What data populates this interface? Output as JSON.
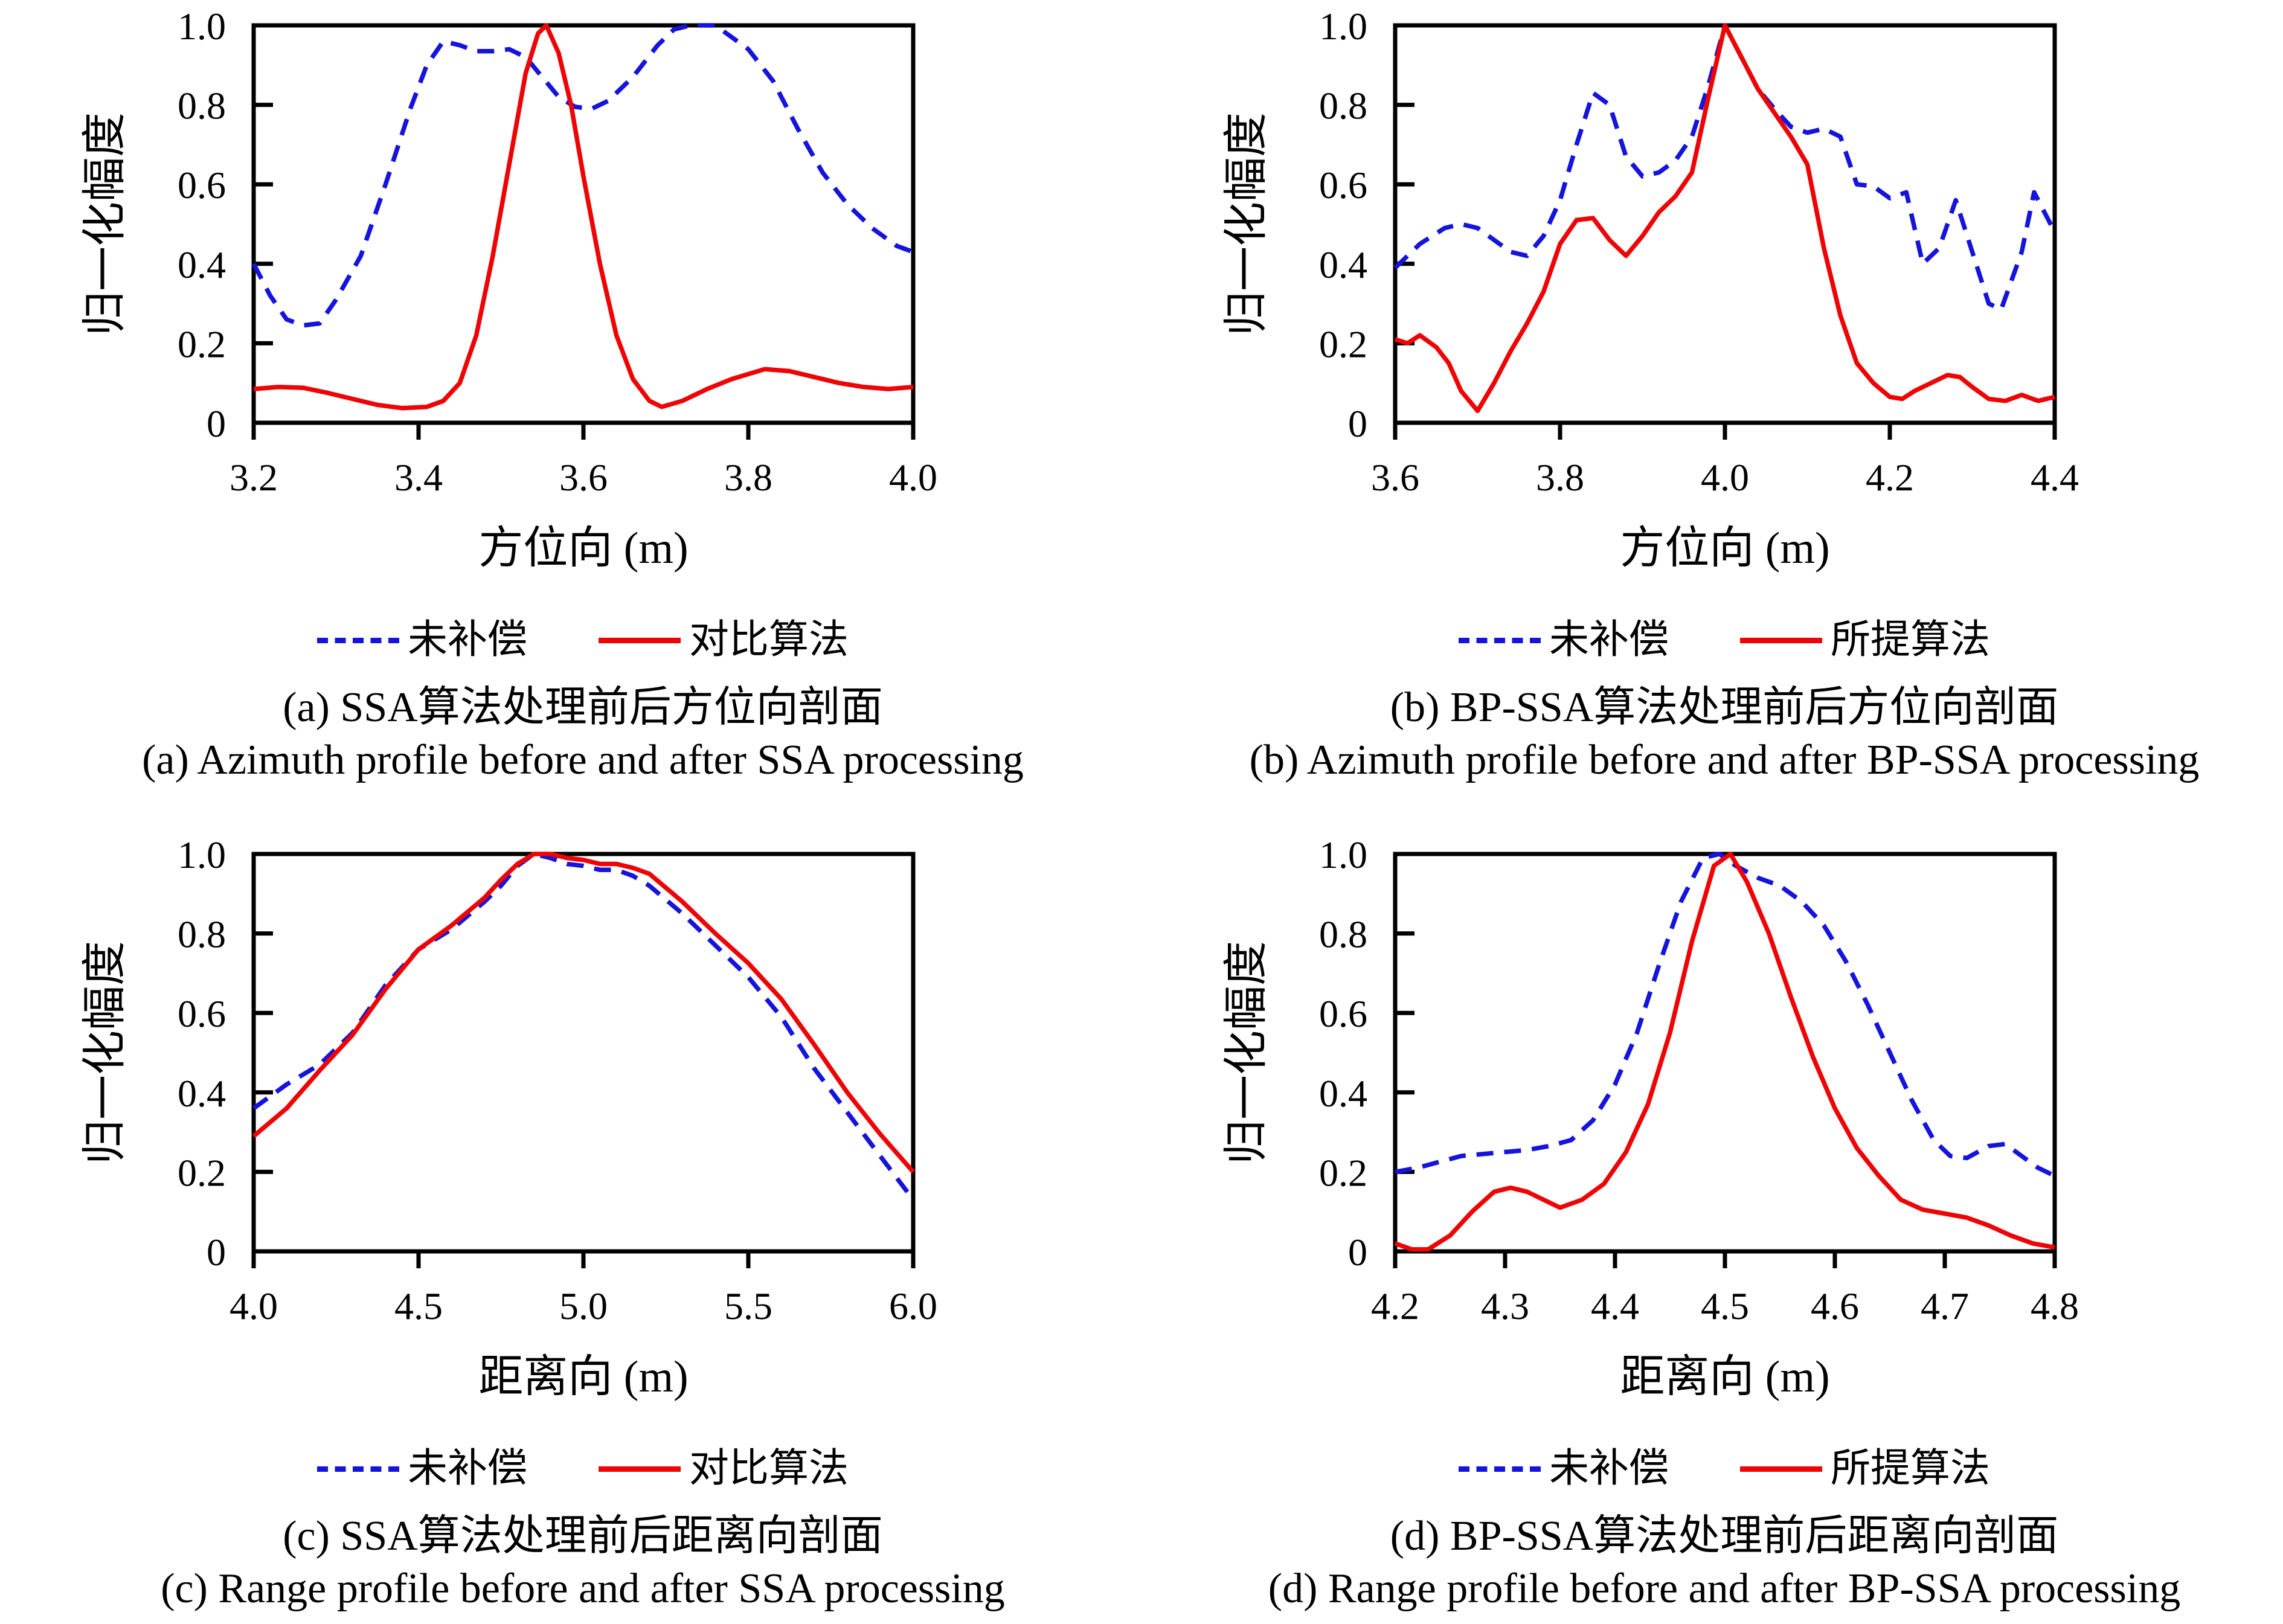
{
  "figure": {
    "background": "#ffffff",
    "colors": {
      "axis": "#000000",
      "uncompensated": "#1414dc",
      "processed": "#ee0404"
    }
  },
  "chart_data": [
    {
      "id": "a",
      "type": "line",
      "caption_zh": "(a) SSA算法处理前后方位向剖面",
      "caption_en": "(a) Azimuth profile before and after SSA processing",
      "xlabel": "方位向 (m)",
      "ylabel": "归一化幅度",
      "xlim": [
        3.2,
        4.0
      ],
      "ylim": [
        0,
        1
      ],
      "grid": false,
      "legend_position": "below",
      "x_ticks": [
        {
          "label": "3.2",
          "value": 3.2
        },
        {
          "label": "3.4",
          "value": 3.4
        },
        {
          "label": "3.6",
          "value": 3.6
        },
        {
          "label": "3.8",
          "value": 3.8
        },
        {
          "label": "4.0",
          "value": 4.0
        }
      ],
      "y_ticks": [
        {
          "label": "0",
          "value": 0
        },
        {
          "label": "0.2",
          "value": 0.2
        },
        {
          "label": "0.4",
          "value": 0.4
        },
        {
          "label": "0.6",
          "value": 0.6
        },
        {
          "label": "0.8",
          "value": 0.8
        },
        {
          "label": "1.0",
          "value": 1.0
        }
      ],
      "legend": [
        {
          "label": "未补偿",
          "style": "dashed",
          "color_key": "uncompensated"
        },
        {
          "label": "对比算法",
          "style": "solid",
          "color_key": "processed"
        }
      ],
      "series": [
        {
          "name": "未补偿",
          "style": "dashed",
          "color_key": "uncompensated",
          "x": [
            3.2,
            3.22,
            3.24,
            3.26,
            3.28,
            3.3,
            3.33,
            3.36,
            3.39,
            3.41,
            3.43,
            3.45,
            3.47,
            3.49,
            3.51,
            3.53,
            3.55,
            3.57,
            3.59,
            3.61,
            3.63,
            3.66,
            3.69,
            3.71,
            3.73,
            3.76,
            3.78,
            3.8,
            3.83,
            3.86,
            3.89,
            3.92,
            3.95,
            3.98,
            4.0
          ],
          "y": [
            0.4,
            0.32,
            0.26,
            0.245,
            0.25,
            0.31,
            0.42,
            0.6,
            0.79,
            0.9,
            0.96,
            0.95,
            0.935,
            0.935,
            0.94,
            0.92,
            0.87,
            0.82,
            0.795,
            0.79,
            0.81,
            0.87,
            0.95,
            0.99,
            1.0,
            1.0,
            0.97,
            0.94,
            0.86,
            0.74,
            0.63,
            0.55,
            0.49,
            0.445,
            0.43
          ]
        },
        {
          "name": "对比算法",
          "style": "solid",
          "color_key": "processed",
          "x": [
            3.2,
            3.23,
            3.26,
            3.29,
            3.32,
            3.35,
            3.38,
            3.41,
            3.43,
            3.45,
            3.47,
            3.49,
            3.51,
            3.53,
            3.545,
            3.555,
            3.57,
            3.585,
            3.6,
            3.62,
            3.64,
            3.66,
            3.68,
            3.695,
            3.72,
            3.75,
            3.78,
            3.82,
            3.85,
            3.88,
            3.91,
            3.94,
            3.97,
            4.0
          ],
          "y": [
            0.085,
            0.09,
            0.088,
            0.075,
            0.06,
            0.045,
            0.037,
            0.04,
            0.055,
            0.1,
            0.22,
            0.42,
            0.65,
            0.88,
            0.98,
            1.0,
            0.93,
            0.8,
            0.62,
            0.4,
            0.22,
            0.11,
            0.055,
            0.04,
            0.055,
            0.085,
            0.11,
            0.135,
            0.13,
            0.115,
            0.1,
            0.09,
            0.085,
            0.09
          ]
        }
      ]
    },
    {
      "id": "b",
      "type": "line",
      "caption_zh": "(b) BP-SSA算法处理前后方位向剖面",
      "caption_en": "(b) Azimuth profile before and after BP-SSA processing",
      "xlabel": "方位向 (m)",
      "ylabel": "归一化幅度",
      "xlim": [
        3.6,
        4.4
      ],
      "ylim": [
        0,
        1
      ],
      "grid": false,
      "legend_position": "below",
      "x_ticks": [
        {
          "label": "3.6",
          "value": 3.6
        },
        {
          "label": "3.8",
          "value": 3.8
        },
        {
          "label": "4.0",
          "value": 4.0
        },
        {
          "label": "4.2",
          "value": 4.2
        },
        {
          "label": "4.4",
          "value": 4.4
        }
      ],
      "y_ticks": [
        {
          "label": "0",
          "value": 0
        },
        {
          "label": "0.2",
          "value": 0.2
        },
        {
          "label": "0.4",
          "value": 0.4
        },
        {
          "label": "0.6",
          "value": 0.6
        },
        {
          "label": "0.8",
          "value": 0.8
        },
        {
          "label": "1.0",
          "value": 1.0
        }
      ],
      "legend": [
        {
          "label": "未补偿",
          "style": "dashed",
          "color_key": "uncompensated"
        },
        {
          "label": "所提算法",
          "style": "solid",
          "color_key": "processed"
        }
      ],
      "series": [
        {
          "name": "未补偿",
          "style": "dashed",
          "color_key": "uncompensated",
          "x": [
            3.6,
            3.63,
            3.66,
            3.68,
            3.7,
            3.72,
            3.74,
            3.76,
            3.78,
            3.8,
            3.82,
            3.84,
            3.86,
            3.88,
            3.9,
            3.92,
            3.94,
            3.96,
            3.98,
            4.0,
            4.02,
            4.04,
            4.06,
            4.08,
            4.1,
            4.12,
            4.14,
            4.16,
            4.18,
            4.2,
            4.22,
            4.24,
            4.26,
            4.28,
            4.3,
            4.32,
            4.335,
            4.36,
            4.375,
            4.39,
            4.4
          ],
          "y": [
            0.39,
            0.45,
            0.49,
            0.5,
            0.49,
            0.46,
            0.43,
            0.42,
            0.47,
            0.56,
            0.7,
            0.83,
            0.8,
            0.67,
            0.62,
            0.63,
            0.66,
            0.72,
            0.85,
            1.0,
            0.92,
            0.84,
            0.79,
            0.745,
            0.73,
            0.74,
            0.72,
            0.6,
            0.595,
            0.565,
            0.58,
            0.4,
            0.44,
            0.56,
            0.43,
            0.3,
            0.285,
            0.43,
            0.58,
            0.52,
            0.48
          ]
        },
        {
          "name": "所提算法",
          "style": "solid",
          "color_key": "processed",
          "x": [
            3.6,
            3.615,
            3.63,
            3.65,
            3.665,
            3.68,
            3.7,
            3.72,
            3.74,
            3.76,
            3.78,
            3.8,
            3.82,
            3.84,
            3.86,
            3.88,
            3.9,
            3.92,
            3.94,
            3.96,
            3.98,
            4.0,
            4.02,
            4.04,
            4.06,
            4.08,
            4.1,
            4.12,
            4.14,
            4.16,
            4.18,
            4.2,
            4.215,
            4.23,
            4.25,
            4.27,
            4.285,
            4.3,
            4.32,
            4.34,
            4.36,
            4.38,
            4.4
          ],
          "y": [
            0.21,
            0.2,
            0.22,
            0.19,
            0.15,
            0.08,
            0.03,
            0.1,
            0.18,
            0.25,
            0.33,
            0.45,
            0.51,
            0.515,
            0.46,
            0.42,
            0.47,
            0.53,
            0.57,
            0.63,
            0.82,
            1.0,
            0.92,
            0.84,
            0.78,
            0.72,
            0.65,
            0.44,
            0.27,
            0.15,
            0.1,
            0.065,
            0.06,
            0.08,
            0.1,
            0.12,
            0.115,
            0.09,
            0.06,
            0.055,
            0.07,
            0.055,
            0.065
          ]
        }
      ]
    },
    {
      "id": "c",
      "type": "line",
      "caption_zh": "(c) SSA算法处理前后距离向剖面",
      "caption_en": "(c) Range profile before and after SSA processing",
      "xlabel": "距离向 (m)",
      "ylabel": "归一化幅度",
      "xlim": [
        4.0,
        6.0
      ],
      "ylim": [
        0,
        1
      ],
      "grid": false,
      "legend_position": "below",
      "x_ticks": [
        {
          "label": "4.0",
          "value": 4.0
        },
        {
          "label": "4.5",
          "value": 4.5
        },
        {
          "label": "5.0",
          "value": 5.0
        },
        {
          "label": "5.5",
          "value": 5.5
        },
        {
          "label": "6.0",
          "value": 6.0
        }
      ],
      "y_ticks": [
        {
          "label": "0",
          "value": 0
        },
        {
          "label": "0.2",
          "value": 0.2
        },
        {
          "label": "0.4",
          "value": 0.4
        },
        {
          "label": "0.6",
          "value": 0.6
        },
        {
          "label": "0.8",
          "value": 0.8
        },
        {
          "label": "1.0",
          "value": 1.0
        }
      ],
      "legend": [
        {
          "label": "未补偿",
          "style": "dashed",
          "color_key": "uncompensated"
        },
        {
          "label": "对比算法",
          "style": "solid",
          "color_key": "processed"
        }
      ],
      "series": [
        {
          "name": "未补偿",
          "style": "dashed",
          "color_key": "uncompensated",
          "x": [
            4.0,
            4.1,
            4.2,
            4.3,
            4.4,
            4.5,
            4.6,
            4.7,
            4.75,
            4.8,
            4.85,
            4.9,
            4.95,
            5.0,
            5.05,
            5.1,
            5.15,
            5.2,
            5.3,
            5.4,
            5.5,
            5.6,
            5.7,
            5.8,
            5.9,
            6.0
          ],
          "y": [
            0.36,
            0.42,
            0.47,
            0.55,
            0.67,
            0.76,
            0.81,
            0.88,
            0.92,
            0.97,
            1.0,
            0.99,
            0.975,
            0.97,
            0.96,
            0.96,
            0.945,
            0.92,
            0.85,
            0.77,
            0.69,
            0.59,
            0.46,
            0.35,
            0.24,
            0.13
          ]
        },
        {
          "name": "对比算法",
          "style": "solid",
          "color_key": "processed",
          "x": [
            4.0,
            4.1,
            4.2,
            4.3,
            4.4,
            4.5,
            4.6,
            4.7,
            4.75,
            4.8,
            4.85,
            4.9,
            4.95,
            5.0,
            5.05,
            5.1,
            5.15,
            5.2,
            5.3,
            5.4,
            5.5,
            5.6,
            5.7,
            5.8,
            5.9,
            6.0
          ],
          "y": [
            0.29,
            0.36,
            0.455,
            0.545,
            0.66,
            0.76,
            0.82,
            0.89,
            0.935,
            0.975,
            1.0,
            1.0,
            0.99,
            0.985,
            0.975,
            0.975,
            0.965,
            0.95,
            0.88,
            0.8,
            0.725,
            0.635,
            0.52,
            0.4,
            0.295,
            0.2
          ]
        }
      ]
    },
    {
      "id": "d",
      "type": "line",
      "caption_zh": "(d) BP-SSA算法处理前后距离向剖面",
      "caption_en": "(d) Range profile before and after BP-SSA processing",
      "xlabel": "距离向 (m)",
      "ylabel": "归一化幅度",
      "xlim": [
        4.2,
        4.8
      ],
      "ylim": [
        0,
        1
      ],
      "grid": false,
      "legend_position": "below",
      "x_ticks": [
        {
          "label": "4.2",
          "value": 4.2
        },
        {
          "label": "4.3",
          "value": 4.3
        },
        {
          "label": "4.4",
          "value": 4.4
        },
        {
          "label": "4.5",
          "value": 4.5
        },
        {
          "label": "4.6",
          "value": 4.6
        },
        {
          "label": "4.7",
          "value": 4.7
        },
        {
          "label": "4.8",
          "value": 4.8
        }
      ],
      "y_ticks": [
        {
          "label": "0",
          "value": 0
        },
        {
          "label": "0.2",
          "value": 0.2
        },
        {
          "label": "0.4",
          "value": 0.4
        },
        {
          "label": "0.6",
          "value": 0.6
        },
        {
          "label": "0.8",
          "value": 0.8
        },
        {
          "label": "1.0",
          "value": 1.0
        }
      ],
      "legend": [
        {
          "label": "未补偿",
          "style": "dashed",
          "color_key": "uncompensated"
        },
        {
          "label": "所提算法",
          "style": "solid",
          "color_key": "processed"
        }
      ],
      "series": [
        {
          "name": "未补偿",
          "style": "dashed",
          "color_key": "uncompensated",
          "x": [
            4.2,
            4.22,
            4.24,
            4.26,
            4.28,
            4.3,
            4.32,
            4.34,
            4.36,
            4.38,
            4.4,
            4.42,
            4.44,
            4.46,
            4.48,
            4.495,
            4.51,
            4.53,
            4.55,
            4.57,
            4.59,
            4.61,
            4.63,
            4.65,
            4.67,
            4.69,
            4.705,
            4.72,
            4.74,
            4.755,
            4.77,
            4.785,
            4.8
          ],
          "y": [
            0.2,
            0.21,
            0.225,
            0.24,
            0.245,
            0.25,
            0.255,
            0.265,
            0.28,
            0.33,
            0.42,
            0.55,
            0.72,
            0.88,
            0.99,
            1.0,
            0.97,
            0.94,
            0.92,
            0.88,
            0.82,
            0.73,
            0.62,
            0.5,
            0.38,
            0.28,
            0.24,
            0.235,
            0.265,
            0.27,
            0.24,
            0.21,
            0.19
          ]
        },
        {
          "name": "所提算法",
          "style": "solid",
          "color_key": "processed",
          "x": [
            4.2,
            4.215,
            4.23,
            4.25,
            4.27,
            4.29,
            4.305,
            4.32,
            4.335,
            4.35,
            4.37,
            4.39,
            4.41,
            4.43,
            4.45,
            4.47,
            4.49,
            4.505,
            4.52,
            4.54,
            4.56,
            4.58,
            4.6,
            4.62,
            4.64,
            4.66,
            4.68,
            4.7,
            4.72,
            4.74,
            4.76,
            4.78,
            4.8
          ],
          "y": [
            0.02,
            0.005,
            0.005,
            0.04,
            0.1,
            0.15,
            0.16,
            0.15,
            0.13,
            0.11,
            0.13,
            0.17,
            0.25,
            0.37,
            0.55,
            0.78,
            0.97,
            1.0,
            0.93,
            0.8,
            0.64,
            0.49,
            0.36,
            0.26,
            0.19,
            0.13,
            0.105,
            0.095,
            0.085,
            0.065,
            0.04,
            0.02,
            0.01
          ]
        }
      ]
    }
  ]
}
